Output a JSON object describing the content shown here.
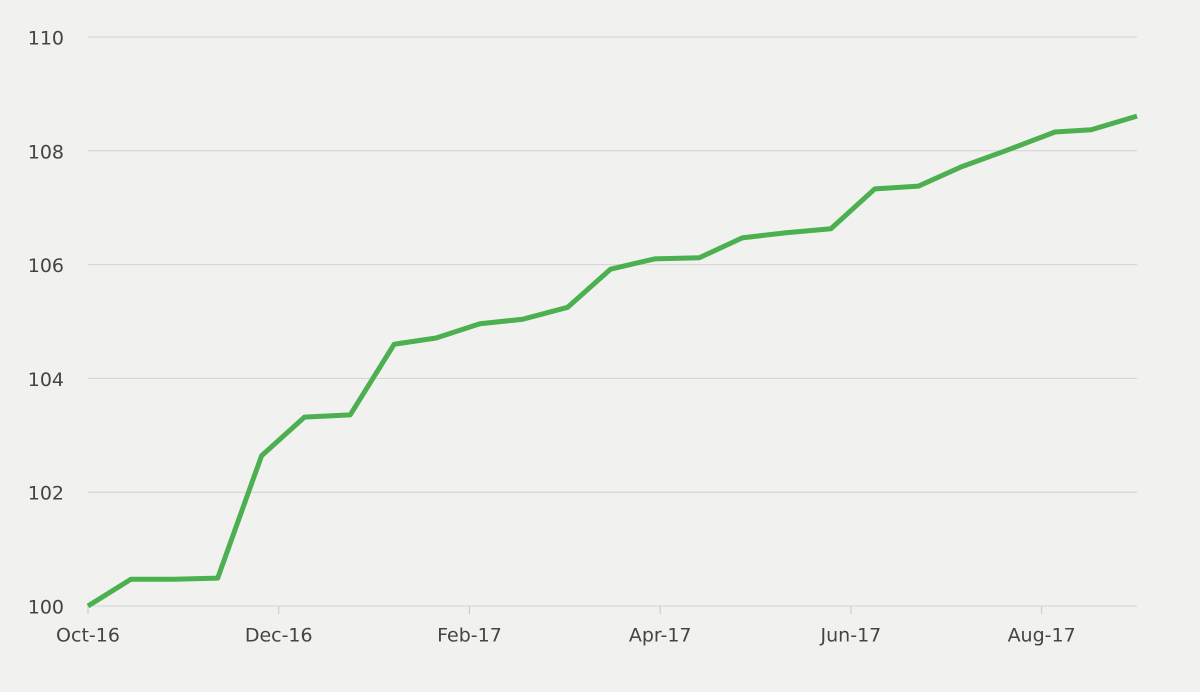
{
  "chart_data": {
    "type": "line",
    "x": [
      0,
      0.45,
      0.9,
      1.36,
      1.82,
      2.27,
      2.75,
      3.21,
      3.65,
      4.11,
      4.56,
      5.03,
      5.48,
      5.94,
      6.41,
      6.86,
      7.32,
      7.79,
      8.25,
      8.71,
      9.16,
      9.62,
      10.14,
      10.52,
      11.0
    ],
    "series": [
      {
        "color": "#4caf50",
        "values": [
          100.0,
          100.47,
          100.47,
          100.49,
          102.64,
          103.32,
          103.36,
          104.6,
          104.71,
          104.96,
          105.04,
          105.25,
          105.92,
          106.1,
          106.12,
          106.47,
          106.56,
          106.63,
          107.33,
          107.38,
          107.72,
          108.0,
          108.33,
          108.37,
          108.61
        ]
      }
    ],
    "xlim": [
      0,
      11.0
    ],
    "xticks": [
      {
        "value": 0,
        "label": "Oct-16"
      },
      {
        "value": 2,
        "label": "Dec-16"
      },
      {
        "value": 4,
        "label": "Feb-17"
      },
      {
        "value": 6,
        "label": "Apr-17"
      },
      {
        "value": 8,
        "label": "Jun-17"
      },
      {
        "value": 10,
        "label": "Aug-17"
      }
    ],
    "ylim": [
      100,
      110
    ],
    "yticks": [
      100,
      102,
      104,
      106,
      108,
      110
    ],
    "grid": true
  }
}
